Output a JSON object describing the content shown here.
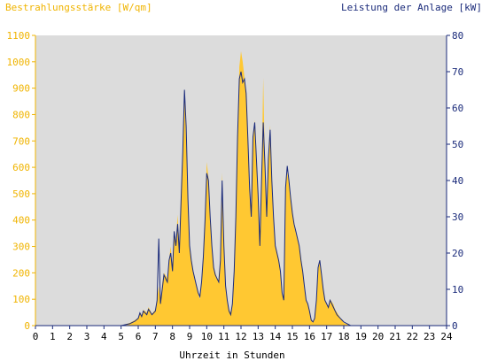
{
  "chart_data": {
    "type": "area",
    "title_left": "Bestrahlungsstärke [W/qm]",
    "title_right": "Leistung der Anlage [kW]",
    "xlabel": "Uhrzeit in Stunden",
    "xlim": [
      0,
      24
    ],
    "ylim_left": [
      0,
      1100
    ],
    "ylim_right": [
      0,
      80
    ],
    "x_ticks": [
      "0",
      "1",
      "2",
      "3",
      "4",
      "5",
      "6",
      "7",
      "8",
      "9",
      "10",
      "11",
      "12",
      "13",
      "14",
      "15",
      "16",
      "17",
      "18",
      "19",
      "20",
      "21",
      "22",
      "23",
      "24"
    ],
    "y_left_ticks": [
      "0",
      "100",
      "200",
      "300",
      "400",
      "500",
      "600",
      "700",
      "800",
      "900",
      "1000",
      "1100"
    ],
    "y_right_ticks": [
      "0",
      "10",
      "20",
      "30",
      "40",
      "50",
      "60",
      "70",
      "80"
    ],
    "grid": false,
    "colors": {
      "irradiance_fill": "#ffc832",
      "power_line": "#1a2a7a",
      "plot_bg": "#dcdcdc",
      "left_axis_text": "#f0b400",
      "right_axis_text": "#1a2a7a"
    },
    "series": [
      {
        "axis": "left",
        "style": "area",
        "x": [
          0,
          5.0,
          5.5,
          5.8,
          6.0,
          6.1,
          6.2,
          6.3,
          6.5,
          6.6,
          6.8,
          7.0,
          7.1,
          7.2,
          7.3,
          7.4,
          7.5,
          7.7,
          7.8,
          7.9,
          8.0,
          8.1,
          8.2,
          8.3,
          8.4,
          8.5,
          8.6,
          8.7,
          8.8,
          8.9,
          9.0,
          9.1,
          9.2,
          9.3,
          9.4,
          9.5,
          9.6,
          9.7,
          9.8,
          9.9,
          10.0,
          10.1,
          10.2,
          10.3,
          10.4,
          10.5,
          10.6,
          10.7,
          10.8,
          10.9,
          11.0,
          11.1,
          11.2,
          11.3,
          11.4,
          11.5,
          11.6,
          11.7,
          11.8,
          11.9,
          12.0,
          12.1,
          12.2,
          12.3,
          12.4,
          12.5,
          12.6,
          12.7,
          12.8,
          12.9,
          13.0,
          13.1,
          13.2,
          13.3,
          13.4,
          13.5,
          13.6,
          13.7,
          13.8,
          13.9,
          14.0,
          14.1,
          14.2,
          14.3,
          14.4,
          14.5,
          14.6,
          14.7,
          14.8,
          14.9,
          15.0,
          15.1,
          15.2,
          15.3,
          15.4,
          15.5,
          15.6,
          15.7,
          15.8,
          15.9,
          16.0,
          16.1,
          16.2,
          16.3,
          16.4,
          16.5,
          16.6,
          16.7,
          16.8,
          16.9,
          17.0,
          17.1,
          17.2,
          17.3,
          17.4,
          17.5,
          17.6,
          17.7,
          17.8,
          17.9,
          18.0,
          18.2,
          18.4,
          18.6,
          18.8,
          19.0,
          19.3,
          19.6,
          20.0,
          20.3,
          20.6,
          21.0,
          24.0
        ],
        "values": [
          0,
          0,
          10,
          20,
          30,
          50,
          40,
          60,
          50,
          70,
          45,
          60,
          100,
          150,
          90,
          160,
          200,
          180,
          250,
          300,
          220,
          360,
          320,
          420,
          300,
          480,
          620,
          880,
          700,
          500,
          300,
          250,
          200,
          180,
          150,
          120,
          100,
          160,
          260,
          400,
          620,
          560,
          420,
          300,
          220,
          200,
          180,
          160,
          260,
          580,
          320,
          150,
          100,
          60,
          50,
          90,
          200,
          400,
          700,
          980,
          1040,
          1000,
          940,
          880,
          700,
          500,
          400,
          700,
          780,
          620,
          500,
          300,
          560,
          940,
          600,
          420,
          640,
          760,
          540,
          400,
          300,
          280,
          250,
          200,
          120,
          100,
          520,
          580,
          540,
          480,
          420,
          380,
          350,
          330,
          300,
          250,
          200,
          150,
          100,
          80,
          50,
          20,
          10,
          30,
          100,
          220,
          250,
          200,
          140,
          100,
          80,
          70,
          100,
          90,
          80,
          60,
          50,
          40,
          30,
          20,
          10,
          5,
          0,
          0,
          0,
          0,
          0,
          0,
          0,
          0,
          0,
          0,
          0
        ]
      },
      {
        "axis": "right",
        "style": "line",
        "x": [
          0,
          5.0,
          5.5,
          5.8,
          6.0,
          6.1,
          6.2,
          6.3,
          6.5,
          6.6,
          6.8,
          7.0,
          7.1,
          7.2,
          7.3,
          7.4,
          7.5,
          7.7,
          7.8,
          7.9,
          8.0,
          8.1,
          8.2,
          8.3,
          8.4,
          8.5,
          8.6,
          8.7,
          8.8,
          8.9,
          9.0,
          9.1,
          9.2,
          9.3,
          9.4,
          9.5,
          9.6,
          9.7,
          9.8,
          9.9,
          10.0,
          10.1,
          10.2,
          10.3,
          10.4,
          10.5,
          10.6,
          10.7,
          10.8,
          10.9,
          11.0,
          11.1,
          11.2,
          11.3,
          11.4,
          11.5,
          11.6,
          11.7,
          11.8,
          11.9,
          12.0,
          12.1,
          12.2,
          12.3,
          12.4,
          12.5,
          12.6,
          12.7,
          12.8,
          12.9,
          13.0,
          13.1,
          13.2,
          13.3,
          13.4,
          13.5,
          13.6,
          13.7,
          13.8,
          13.9,
          14.0,
          14.1,
          14.2,
          14.3,
          14.4,
          14.5,
          14.6,
          14.7,
          14.8,
          14.9,
          15.0,
          15.1,
          15.2,
          15.3,
          15.4,
          15.5,
          15.6,
          15.7,
          15.8,
          15.9,
          16.0,
          16.1,
          16.2,
          16.3,
          16.4,
          16.5,
          16.6,
          16.7,
          16.8,
          16.9,
          17.0,
          17.1,
          17.2,
          17.3,
          17.4,
          17.5,
          17.6,
          17.7,
          17.8,
          17.9,
          18.0,
          18.2,
          18.4,
          18.6,
          18.8,
          19.0,
          19.3,
          19.6,
          20.0,
          20.3,
          20.6,
          21.0,
          24.0
        ],
        "values": [
          0,
          0,
          0.5,
          1.2,
          2,
          3.5,
          2.5,
          4,
          3,
          4.5,
          3,
          4,
          7,
          24,
          6,
          10,
          14,
          12,
          18,
          20,
          15,
          26,
          22,
          28,
          20,
          34,
          48,
          65,
          55,
          35,
          22,
          18,
          15,
          13,
          11,
          9,
          8,
          12,
          19,
          29,
          42,
          40,
          30,
          22,
          16,
          14,
          13,
          12,
          18,
          40,
          22,
          11,
          7,
          4,
          3,
          6,
          15,
          30,
          52,
          68,
          70,
          67,
          68,
          64,
          52,
          38,
          30,
          52,
          56,
          46,
          36,
          22,
          40,
          56,
          44,
          30,
          46,
          54,
          40,
          30,
          22,
          20,
          18,
          15,
          9,
          7,
          38,
          44,
          40,
          35,
          31,
          28,
          26,
          24,
          22,
          18,
          15,
          11,
          7,
          6,
          4,
          1.5,
          1,
          2,
          7,
          16,
          18,
          14,
          10,
          7,
          6,
          5,
          7,
          6,
          5,
          4,
          3,
          2.5,
          2,
          1.5,
          1,
          0.5,
          0,
          0,
          0,
          0,
          0,
          0,
          0,
          0,
          0,
          0,
          0
        ]
      }
    ]
  }
}
